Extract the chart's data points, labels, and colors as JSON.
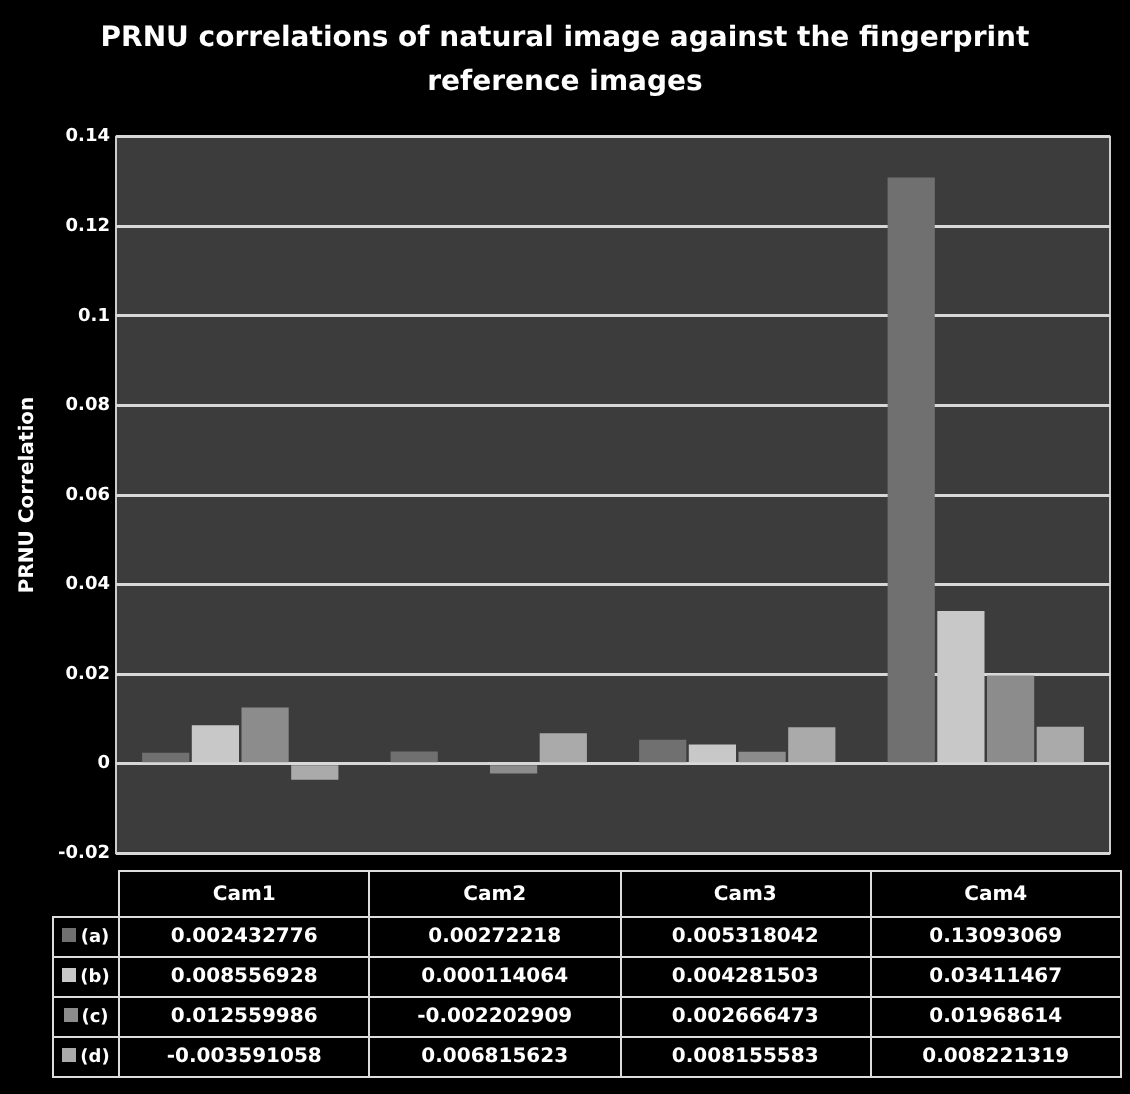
{
  "chart_data": {
    "type": "bar",
    "title": "PRNU correlations of natural image against the fingerprint reference images",
    "ylabel": "PRNU Correlation",
    "categories": [
      "Cam1",
      "Cam2",
      "Cam3",
      "Cam4"
    ],
    "series": [
      {
        "name": "(a)",
        "color": "#707070",
        "values": [
          0.002432776,
          0.00272218,
          0.005318042,
          0.13093069
        ]
      },
      {
        "name": "(b)",
        "color": "#c8c8c8",
        "values": [
          0.008556928,
          0.000114064,
          0.004281503,
          0.03411467
        ]
      },
      {
        "name": "(c)",
        "color": "#8c8c8c",
        "values": [
          0.012559986,
          -0.002202909,
          0.002666473,
          0.01968614
        ]
      },
      {
        "name": "(d)",
        "color": "#aaaaaa",
        "values": [
          -0.003591058,
          0.006815623,
          0.008155583,
          0.008221319
        ]
      }
    ],
    "ylim": [
      -0.02,
      0.14
    ],
    "yticks": [
      -0.02,
      0,
      0.02,
      0.04,
      0.06,
      0.08,
      0.1,
      0.12,
      0.14
    ],
    "grid": "y",
    "legend": "bottom",
    "data_labels": true
  }
}
